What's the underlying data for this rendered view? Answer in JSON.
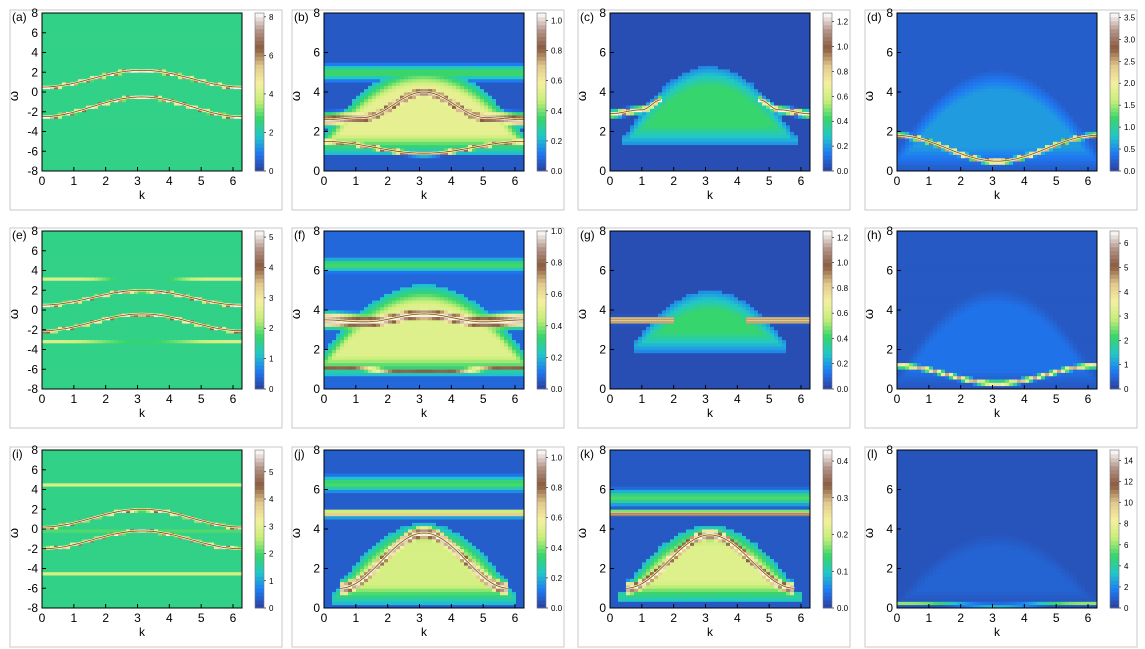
{
  "figure": {
    "colorscale": [
      "#2c3f9c",
      "#1f78f2",
      "#21c7c9",
      "#38d56a",
      "#c7ef78",
      "#f4f0a0",
      "#e2c98d",
      "#8a5a3e",
      "#b39488",
      "#ffffff"
    ],
    "band_color": "#fdf6a8",
    "band_core": "#7a4b2e"
  },
  "chart_data": [
    {
      "panel": "(a)",
      "type": "heatmap",
      "xlabel": "k",
      "ylabel": "ω",
      "xlim": [
        0,
        6.283
      ],
      "ylim": [
        -8,
        8
      ],
      "xticks": [
        "0",
        "1",
        "2",
        "3",
        "4",
        "5",
        "6"
      ],
      "yticks": [
        "-8",
        "-6",
        "-4",
        "-2",
        "0",
        "2",
        "4",
        "6",
        "8"
      ],
      "colorbar": {
        "range": [
          0,
          8.2
        ],
        "ticks": [
          "0",
          "2",
          "4",
          "6",
          "8"
        ]
      },
      "background": 0.3,
      "bands": [
        {
          "k": [
            0,
            3.14,
            6.28
          ],
          "w": [
            0.5,
            2.2,
            0.5
          ],
          "width": 0.18,
          "peak": 1.0
        },
        {
          "k": [
            0,
            3.14,
            6.28
          ],
          "w": [
            -2.5,
            -0.5,
            -2.5
          ],
          "width": 0.18,
          "peak": 1.0
        },
        {
          "k": [
            0,
            3.14,
            6.28
          ],
          "w": [
            1.4,
            0.9,
            1.4
          ],
          "width": 0.25,
          "peak": 0.18
        }
      ]
    },
    {
      "panel": "(b)",
      "type": "heatmap",
      "xlabel": "k",
      "ylabel": "ω",
      "xlim": [
        0,
        6.283
      ],
      "ylim": [
        0,
        8
      ],
      "xticks": [
        "0",
        "1",
        "2",
        "3",
        "4",
        "5",
        "6"
      ],
      "yticks": [
        "0",
        "2",
        "4",
        "6",
        "8"
      ],
      "colorbar": {
        "range": [
          0,
          1.05
        ],
        "ticks": [
          "0.0",
          "0.2",
          "0.4",
          "0.6",
          "0.8",
          "1.0"
        ]
      },
      "background": 0.05,
      "dome": {
        "center": 3.14,
        "halfwidth": 3.3,
        "top": 5.0,
        "base": 1.2,
        "level": 0.52
      },
      "bands": [
        {
          "k": [
            0,
            1.2,
            3.14,
            5.1,
            6.28
          ],
          "w": [
            2.6,
            2.7,
            4.0,
            2.7,
            2.6
          ],
          "width": 0.3,
          "peak": 0.95
        },
        {
          "k": [
            0,
            3.14,
            6.28
          ],
          "w": [
            1.5,
            0.9,
            1.5
          ],
          "width": 0.12,
          "peak": 0.9
        },
        {
          "k": [
            0,
            3.14,
            6.28
          ],
          "w": [
            5.0,
            5.0,
            5.0
          ],
          "width": 0.4,
          "peak": 0.35
        }
      ]
    },
    {
      "panel": "(c)",
      "type": "heatmap",
      "xlabel": "k",
      "ylabel": "ω",
      "xlim": [
        0,
        6.283
      ],
      "ylim": [
        0,
        8
      ],
      "xticks": [
        "0",
        "1",
        "2",
        "3",
        "4",
        "5",
        "6"
      ],
      "yticks": [
        "0",
        "2",
        "4",
        "6",
        "8"
      ],
      "colorbar": {
        "range": [
          0,
          1.27
        ],
        "ticks": [
          "0.0",
          "0.2",
          "0.4",
          "0.6",
          "0.8",
          "1.0",
          "1.2"
        ]
      },
      "background": 0.03,
      "dome": {
        "center": 3.14,
        "halfwidth": 2.6,
        "top": 5.0,
        "base": 1.6,
        "level": 0.33
      },
      "bands": [
        {
          "k": [
            0,
            1.0,
            1.6
          ],
          "w": [
            2.9,
            3.1,
            3.6
          ],
          "width": 0.15,
          "peak": 1.0
        },
        {
          "k": [
            4.7,
            5.3,
            6.28
          ],
          "w": [
            3.6,
            3.1,
            2.9
          ],
          "width": 0.15,
          "peak": 1.0
        }
      ]
    },
    {
      "panel": "(d)",
      "type": "heatmap",
      "xlabel": "k",
      "ylabel": "ω",
      "xlim": [
        0,
        6.283
      ],
      "ylim": [
        0,
        8
      ],
      "xticks": [
        "0",
        "1",
        "2",
        "3",
        "4",
        "5",
        "6"
      ],
      "yticks": [
        "0",
        "2",
        "4",
        "6",
        "8"
      ],
      "colorbar": {
        "range": [
          0,
          3.6
        ],
        "ticks": [
          "0.0",
          "0.5",
          "1.0",
          "1.5",
          "2.0",
          "2.5",
          "3.0",
          "3.5"
        ]
      },
      "background": 0.06,
      "dome": {
        "center": 3.14,
        "halfwidth": 3.2,
        "top": 4.8,
        "base": 0.5,
        "level": 0.16
      },
      "bands": [
        {
          "k": [
            0,
            3.14,
            6.28
          ],
          "w": [
            1.8,
            0.5,
            1.8
          ],
          "width": 0.12,
          "peak": 0.95
        }
      ]
    },
    {
      "panel": "(e)",
      "type": "heatmap",
      "xlabel": "k",
      "ylabel": "ω",
      "xlim": [
        0,
        6.283
      ],
      "ylim": [
        -8,
        8
      ],
      "xticks": [
        "0",
        "1",
        "2",
        "3",
        "4",
        "5",
        "6"
      ],
      "yticks": [
        "-8",
        "-6",
        "-4",
        "-2",
        "0",
        "2",
        "4",
        "6",
        "8"
      ],
      "colorbar": {
        "range": [
          0,
          5.2
        ],
        "ticks": [
          "0",
          "1",
          "2",
          "3",
          "4",
          "5"
        ]
      },
      "background": 0.3,
      "bands": [
        {
          "k": [
            0,
            3.14,
            6.28
          ],
          "w": [
            3.2,
            3.0,
            3.2
          ],
          "width": 0.2,
          "peak": 0.5
        },
        {
          "k": [
            0,
            3.14,
            6.28
          ],
          "w": [
            0.5,
            2.0,
            0.5
          ],
          "width": 0.16,
          "peak": 1.0
        },
        {
          "k": [
            0,
            3.14,
            6.28
          ],
          "w": [
            -2.1,
            -0.4,
            -2.1
          ],
          "width": 0.16,
          "peak": 1.0
        },
        {
          "k": [
            0,
            3.14,
            6.28
          ],
          "w": [
            -3.2,
            -3.3,
            -3.2
          ],
          "width": 0.2,
          "peak": 0.5
        }
      ]
    },
    {
      "panel": "(f)",
      "type": "heatmap",
      "xlabel": "k",
      "ylabel": "ω",
      "xlim": [
        0,
        6.283
      ],
      "ylim": [
        0,
        8
      ],
      "xticks": [
        "0",
        "1",
        "2",
        "3",
        "4",
        "5",
        "6"
      ],
      "yticks": [
        "0",
        "2",
        "4",
        "6",
        "8"
      ],
      "colorbar": {
        "range": [
          0,
          1.0
        ],
        "ticks": [
          "0.0",
          "0.2",
          "0.4",
          "0.6",
          "0.8",
          "1.0"
        ]
      },
      "background": 0.08,
      "dome": {
        "center": 3.14,
        "halfwidth": 3.4,
        "top": 5.0,
        "base": 1.0,
        "level": 0.5
      },
      "bands": [
        {
          "k": [
            0,
            1.3,
            3.14,
            5.0,
            6.28
          ],
          "w": [
            3.5,
            3.4,
            3.8,
            3.4,
            3.5
          ],
          "width": 0.35,
          "peak": 1.0
        },
        {
          "k": [
            0,
            3.14,
            6.28
          ],
          "w": [
            1.1,
            0.9,
            1.1
          ],
          "width": 0.12,
          "peak": 0.8
        },
        {
          "k": [
            0,
            3.14,
            6.28
          ],
          "w": [
            6.3,
            6.3,
            6.3
          ],
          "width": 0.35,
          "peak": 0.35
        }
      ]
    },
    {
      "panel": "(g)",
      "type": "heatmap",
      "xlabel": "k",
      "ylabel": "ω",
      "xlim": [
        0,
        6.283
      ],
      "ylim": [
        0,
        8
      ],
      "xticks": [
        "0",
        "1",
        "2",
        "3",
        "4",
        "5",
        "6"
      ],
      "yticks": [
        "0",
        "2",
        "4",
        "6",
        "8"
      ],
      "colorbar": {
        "range": [
          0,
          1.25
        ],
        "ticks": [
          "0.0",
          "0.2",
          "0.4",
          "0.6",
          "0.8",
          "1.0",
          "1.2"
        ]
      },
      "background": 0.03,
      "dome": {
        "center": 3.14,
        "halfwidth": 2.3,
        "top": 4.7,
        "base": 2.2,
        "level": 0.33
      },
      "bands": [
        {
          "k": [
            0,
            1.0,
            2.0
          ],
          "w": [
            3.5,
            3.5,
            3.5
          ],
          "width": 0.14,
          "peak": 1.0
        },
        {
          "k": [
            4.3,
            5.3,
            6.28
          ],
          "w": [
            3.5,
            3.5,
            3.5
          ],
          "width": 0.14,
          "peak": 1.0
        }
      ]
    },
    {
      "panel": "(h)",
      "type": "heatmap",
      "xlabel": "k",
      "ylabel": "ω",
      "xlim": [
        0,
        6.283
      ],
      "ylim": [
        0,
        8
      ],
      "xticks": [
        "0",
        "1",
        "2",
        "3",
        "4",
        "5",
        "6"
      ],
      "yticks": [
        "0",
        "2",
        "4",
        "6",
        "8"
      ],
      "colorbar": {
        "range": [
          0,
          6.5
        ],
        "ticks": [
          "0",
          "1",
          "2",
          "3",
          "4",
          "5",
          "6"
        ]
      },
      "background": 0.05,
      "dome": {
        "center": 3.14,
        "halfwidth": 3.2,
        "top": 5.0,
        "base": 0.3,
        "level": 0.1
      },
      "bands": [
        {
          "k": [
            0,
            3.14,
            6.28
          ],
          "w": [
            1.2,
            0.3,
            1.2
          ],
          "width": 0.12,
          "peak": 0.7
        }
      ]
    },
    {
      "panel": "(i)",
      "type": "heatmap",
      "xlabel": "k",
      "ylabel": "ω",
      "xlim": [
        0,
        6.283
      ],
      "ylim": [
        -8,
        8
      ],
      "xticks": [
        "0",
        "1",
        "2",
        "3",
        "4",
        "5",
        "6"
      ],
      "yticks": [
        "-8",
        "-6",
        "-4",
        "-2",
        "0",
        "2",
        "4",
        "6",
        "8"
      ],
      "colorbar": {
        "range": [
          0,
          5.8
        ],
        "ticks": [
          "0",
          "1",
          "2",
          "3",
          "4",
          "5"
        ]
      },
      "background": 0.3,
      "bands": [
        {
          "k": [
            0,
            3.14,
            6.28
          ],
          "w": [
            4.6,
            4.6,
            4.6
          ],
          "width": 0.15,
          "peak": 0.75
        },
        {
          "k": [
            0,
            3.14,
            6.28
          ],
          "w": [
            0.2,
            2.0,
            0.2
          ],
          "width": 0.16,
          "peak": 1.0
        },
        {
          "k": [
            0,
            3.14,
            6.28
          ],
          "w": [
            -0.1,
            -0.1,
            -0.1
          ],
          "width": 0.1,
          "peak": 0.55
        },
        {
          "k": [
            0,
            3.14,
            6.28
          ],
          "w": [
            -2.0,
            -0.2,
            -2.0
          ],
          "width": 0.16,
          "peak": 1.0
        },
        {
          "k": [
            0,
            3.14,
            6.28
          ],
          "w": [
            -4.6,
            -4.6,
            -4.6
          ],
          "width": 0.15,
          "peak": 0.75
        }
      ]
    },
    {
      "panel": "(j)",
      "type": "heatmap",
      "xlabel": "k",
      "ylabel": "ω",
      "xlim": [
        0,
        6.283
      ],
      "ylim": [
        0,
        8
      ],
      "xticks": [
        "0",
        "1",
        "2",
        "3",
        "4",
        "5",
        "6"
      ],
      "yticks": [
        "0",
        "2",
        "4",
        "6",
        "8"
      ],
      "colorbar": {
        "range": [
          0,
          1.05
        ],
        "ticks": [
          "0.0",
          "0.2",
          "0.4",
          "0.6",
          "0.8",
          "1.0"
        ]
      },
      "background": 0.06,
      "dome": {
        "center": 3.14,
        "halfwidth": 2.8,
        "top": 4.0,
        "base": 0.5,
        "level": 0.48
      },
      "bands": [
        {
          "k": [
            0.5,
            3.14,
            5.8
          ],
          "w": [
            1.0,
            3.8,
            1.0
          ],
          "width": 0.35,
          "peak": 1.0
        },
        {
          "k": [
            0,
            3.14,
            6.28
          ],
          "w": [
            4.8,
            4.8,
            4.8
          ],
          "width": 0.18,
          "peak": 0.7
        },
        {
          "k": [
            0,
            3.14,
            6.28
          ],
          "w": [
            6.3,
            6.3,
            6.3
          ],
          "width": 0.4,
          "peak": 0.35
        }
      ]
    },
    {
      "panel": "(k)",
      "type": "heatmap",
      "xlabel": "k",
      "ylabel": "ω",
      "xlim": [
        0,
        6.283
      ],
      "ylim": [
        0,
        8
      ],
      "xticks": [
        "0",
        "1",
        "2",
        "3",
        "4",
        "5",
        "6"
      ],
      "yticks": [
        "0",
        "2",
        "4",
        "6",
        "8"
      ],
      "colorbar": {
        "range": [
          0,
          0.43
        ],
        "ticks": [
          "0.0",
          "0.1",
          "0.2",
          "0.3",
          "0.4"
        ]
      },
      "background": 0.05,
      "dome": {
        "center": 3.14,
        "halfwidth": 2.7,
        "top": 3.9,
        "base": 0.6,
        "level": 0.5
      },
      "bands": [
        {
          "k": [
            0.5,
            3.14,
            5.8
          ],
          "w": [
            1.0,
            3.7,
            1.0
          ],
          "width": 0.3,
          "peak": 1.0
        },
        {
          "k": [
            0,
            3.14,
            6.28
          ],
          "w": [
            4.8,
            4.8,
            4.8
          ],
          "width": 0.12,
          "peak": 1.0
        },
        {
          "k": [
            0,
            3.14,
            6.28
          ],
          "w": [
            5.6,
            5.6,
            5.6
          ],
          "width": 0.4,
          "peak": 0.35
        }
      ]
    },
    {
      "panel": "(l)",
      "type": "heatmap",
      "xlabel": "k",
      "ylabel": "ω",
      "xlim": [
        0,
        6.283
      ],
      "ylim": [
        0,
        8
      ],
      "xticks": [
        "0",
        "1",
        "2",
        "3",
        "4",
        "5",
        "6"
      ],
      "yticks": [
        "0",
        "2",
        "4",
        "6",
        "8"
      ],
      "colorbar": {
        "range": [
          0,
          15
        ],
        "ticks": [
          "0",
          "2",
          "4",
          "6",
          "8",
          "10",
          "12",
          "14"
        ]
      },
      "background": 0.04,
      "dome": {
        "center": 3.14,
        "halfwidth": 3.2,
        "top": 3.8,
        "base": 0.2,
        "level": 0.07
      },
      "bands": [
        {
          "k": [
            0,
            3.14,
            6.28
          ],
          "w": [
            0.25,
            0.15,
            0.25
          ],
          "width": 0.08,
          "peak": 0.4
        }
      ]
    }
  ]
}
